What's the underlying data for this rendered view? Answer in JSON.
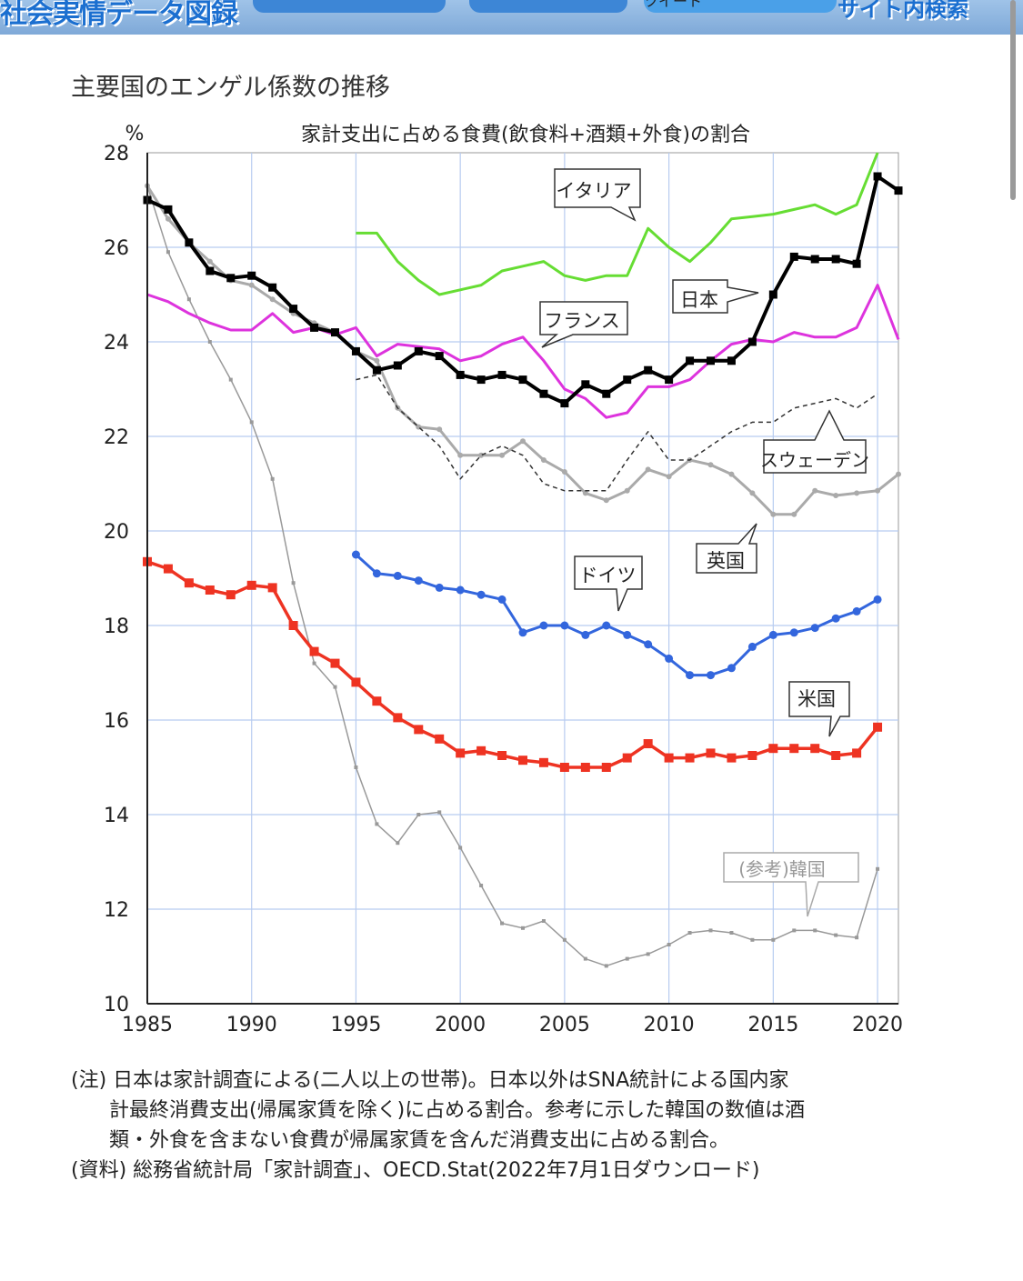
{
  "header": {
    "site_logo": "社会実情データ図録",
    "site_search": "サイト内検索",
    "buttons": [
      "",
      "",
      "ツイート"
    ]
  },
  "page": {
    "title": "主要国のエンゲル係数の推移"
  },
  "chart_data": {
    "type": "line",
    "title": "家計支出に占める食費(飲食料+酒類+外食)の割合",
    "ylabel": "%",
    "xlabel": "",
    "xlim": [
      1985,
      2021
    ],
    "ylim": [
      10,
      28
    ],
    "xticks": [
      1985,
      1990,
      1995,
      2000,
      2005,
      2010,
      2015,
      2020
    ],
    "yticks": [
      10,
      12,
      14,
      16,
      18,
      20,
      22,
      24,
      26,
      28
    ],
    "grid": true,
    "colors": {
      "italy": "#66dd33",
      "japan": "#000000",
      "france": "#dd33dd",
      "sweden": "#333333",
      "uk": "#aaaaaa",
      "germany": "#3366dd",
      "usa": "#ee3322",
      "korea": "#999999"
    },
    "series": [
      {
        "name": "イタリア",
        "key": "italy",
        "x": [
          1995,
          1996,
          1997,
          1998,
          1999,
          2000,
          2001,
          2002,
          2003,
          2004,
          2005,
          2006,
          2007,
          2008,
          2009,
          2010,
          2011,
          2012,
          2013,
          2014,
          2015,
          2016,
          2017,
          2018,
          2019,
          2020
        ],
        "y": [
          26.3,
          26.3,
          25.7,
          25.3,
          25.0,
          25.1,
          25.2,
          25.5,
          25.6,
          25.7,
          25.4,
          25.3,
          25.4,
          25.4,
          26.4,
          26.0,
          25.7,
          26.1,
          26.6,
          26.65,
          26.7,
          26.8,
          26.9,
          26.7,
          26.9,
          28.0
        ]
      },
      {
        "name": "日本",
        "key": "japan",
        "x": [
          1985,
          1986,
          1987,
          1988,
          1989,
          1990,
          1991,
          1992,
          1993,
          1994,
          1995,
          1996,
          1997,
          1998,
          1999,
          2000,
          2001,
          2002,
          2003,
          2004,
          2005,
          2006,
          2007,
          2008,
          2009,
          2010,
          2011,
          2012,
          2013,
          2014,
          2015,
          2016,
          2017,
          2018,
          2019,
          2020,
          2021
        ],
        "y": [
          27.0,
          26.8,
          26.1,
          25.5,
          25.35,
          25.4,
          25.15,
          24.7,
          24.3,
          24.2,
          23.8,
          23.4,
          23.5,
          23.8,
          23.7,
          23.3,
          23.2,
          23.3,
          23.2,
          22.9,
          22.7,
          23.1,
          22.9,
          23.2,
          23.4,
          23.2,
          23.6,
          23.6,
          23.6,
          24.0,
          25.0,
          25.8,
          25.75,
          25.75,
          25.65,
          27.5,
          27.2
        ]
      },
      {
        "name": "フランス",
        "key": "france",
        "x": [
          1985,
          1986,
          1987,
          1988,
          1989,
          1990,
          1991,
          1992,
          1993,
          1994,
          1995,
          1996,
          1997,
          1998,
          1999,
          2000,
          2001,
          2002,
          2003,
          2004,
          2005,
          2006,
          2007,
          2008,
          2009,
          2010,
          2011,
          2012,
          2013,
          2014,
          2015,
          2016,
          2017,
          2018,
          2019,
          2020,
          2021
        ],
        "y": [
          25.0,
          24.85,
          24.6,
          24.4,
          24.25,
          24.25,
          24.6,
          24.2,
          24.3,
          24.15,
          24.3,
          23.7,
          23.95,
          23.9,
          23.85,
          23.6,
          23.7,
          23.95,
          24.1,
          23.6,
          23.0,
          22.8,
          22.4,
          22.5,
          23.05,
          23.05,
          23.2,
          23.6,
          23.95,
          24.05,
          24.0,
          24.2,
          24.1,
          24.1,
          24.3,
          25.2,
          24.05
        ]
      },
      {
        "name": "スウェーデン",
        "key": "sweden",
        "x": [
          1995,
          1996,
          1997,
          1998,
          1999,
          2000,
          2001,
          2002,
          2003,
          2004,
          2005,
          2006,
          2007,
          2008,
          2009,
          2010,
          2011,
          2012,
          2013,
          2014,
          2015,
          2016,
          2017,
          2018,
          2019,
          2020
        ],
        "y": [
          23.2,
          23.3,
          22.6,
          22.2,
          21.8,
          21.1,
          21.6,
          21.8,
          21.6,
          21.0,
          20.85,
          20.85,
          20.85,
          21.5,
          22.1,
          21.5,
          21.5,
          21.8,
          22.1,
          22.3,
          22.3,
          22.6,
          22.7,
          22.8,
          22.6,
          22.9
        ]
      },
      {
        "name": "英国",
        "key": "uk",
        "x": [
          1985,
          1986,
          1987,
          1988,
          1989,
          1990,
          1991,
          1992,
          1993,
          1994,
          1995,
          1996,
          1997,
          1998,
          1999,
          2000,
          2001,
          2002,
          2003,
          2004,
          2005,
          2006,
          2007,
          2008,
          2009,
          2010,
          2011,
          2012,
          2013,
          2014,
          2015,
          2016,
          2017,
          2018,
          2019,
          2020,
          2021
        ],
        "y": [
          27.3,
          26.6,
          26.1,
          25.7,
          25.3,
          25.2,
          24.9,
          24.6,
          24.4,
          24.2,
          23.8,
          23.6,
          22.6,
          22.2,
          22.15,
          21.6,
          21.6,
          21.6,
          21.9,
          21.5,
          21.25,
          20.8,
          20.65,
          20.85,
          21.3,
          21.15,
          21.5,
          21.4,
          21.2,
          20.8,
          20.35,
          20.35,
          20.85,
          20.75,
          20.8,
          20.85,
          21.2
        ]
      },
      {
        "name": "ドイツ",
        "key": "germany",
        "x": [
          1995,
          1996,
          1997,
          1998,
          1999,
          2000,
          2001,
          2002,
          2003,
          2004,
          2005,
          2006,
          2007,
          2008,
          2009,
          2010,
          2011,
          2012,
          2013,
          2014,
          2015,
          2016,
          2017,
          2018,
          2019,
          2020
        ],
        "y": [
          19.5,
          19.1,
          19.05,
          18.95,
          18.8,
          18.75,
          18.65,
          18.55,
          17.85,
          18.0,
          18.0,
          17.8,
          18.0,
          17.8,
          17.6,
          17.3,
          16.95,
          16.95,
          17.1,
          17.55,
          17.8,
          17.85,
          17.95,
          18.15,
          18.3,
          18.55
        ]
      },
      {
        "name": "米国",
        "key": "usa",
        "x": [
          1985,
          1986,
          1987,
          1988,
          1989,
          1990,
          1991,
          1992,
          1993,
          1994,
          1995,
          1996,
          1997,
          1998,
          1999,
          2000,
          2001,
          2002,
          2003,
          2004,
          2005,
          2006,
          2007,
          2008,
          2009,
          2010,
          2011,
          2012,
          2013,
          2014,
          2015,
          2016,
          2017,
          2018,
          2019,
          2020
        ],
        "y": [
          19.35,
          19.2,
          18.9,
          18.75,
          18.65,
          18.85,
          18.8,
          18.0,
          17.45,
          17.2,
          16.8,
          16.4,
          16.05,
          15.8,
          15.6,
          15.3,
          15.35,
          15.25,
          15.15,
          15.1,
          15.0,
          15.0,
          15.0,
          15.2,
          15.5,
          15.2,
          15.2,
          15.3,
          15.2,
          15.25,
          15.4,
          15.4,
          15.4,
          15.25,
          15.3,
          15.85
        ]
      },
      {
        "name": "(参考)韓国",
        "key": "korea",
        "x": [
          1985,
          1986,
          1987,
          1988,
          1989,
          1990,
          1991,
          1992,
          1993,
          1994,
          1995,
          1996,
          1997,
          1998,
          1999,
          2000,
          2001,
          2002,
          2003,
          2004,
          2005,
          2006,
          2007,
          2008,
          2009,
          2010,
          2011,
          2012,
          2013,
          2014,
          2015,
          2016,
          2017,
          2018,
          2019,
          2020
        ],
        "y": [
          27.3,
          25.9,
          24.9,
          24.0,
          23.2,
          22.3,
          21.1,
          18.9,
          17.2,
          16.7,
          15.0,
          13.8,
          13.4,
          14.0,
          14.05,
          13.3,
          12.5,
          11.7,
          11.6,
          11.75,
          11.35,
          10.95,
          10.8,
          10.95,
          11.05,
          11.25,
          11.5,
          11.55,
          11.5,
          11.35,
          11.35,
          11.55,
          11.55,
          11.45,
          11.4,
          12.85
        ]
      }
    ]
  },
  "notes": {
    "line1": "(注) 日本は家計調査による(二人以上の世帯)。日本以外はSNA統計による国内家",
    "line2": "計最終消費支出(帰属家賃を除く)に占める割合。参考に示した韓国の数値は酒",
    "line3": "類・外食を含まない食費が帰属家賃を含んだ消費支出に占める割合。",
    "source": "(資料) 総務省統計局「家計調査」、OECD.Stat(2022年7月1日ダウンロード)"
  }
}
